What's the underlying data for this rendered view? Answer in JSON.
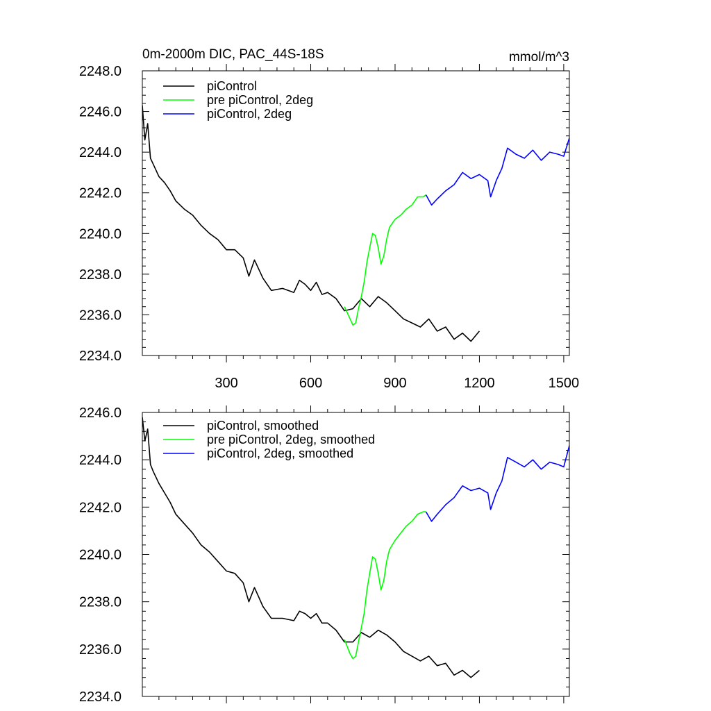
{
  "chart_data": [
    {
      "type": "line",
      "title": "0m-2000m DIC, PAC_44S-18S",
      "units": "mmol/m^3",
      "xlim": [
        1,
        1520
      ],
      "ylim": [
        2234.0,
        2248.0
      ],
      "xticks": [
        300,
        600,
        900,
        1200,
        1500
      ],
      "xtick_labels": [
        "300",
        "600",
        "900",
        "1200",
        "1500"
      ],
      "yticks": [
        2234,
        2236,
        2238,
        2240,
        2242,
        2244,
        2246,
        2248
      ],
      "ytick_labels": [
        "2234.0",
        "2236.0",
        "2238.0",
        "2240.0",
        "2242.0",
        "2244.0",
        "2246.0",
        "2248.0"
      ],
      "legend_position": "top-left",
      "grid": false,
      "series": [
        {
          "name": "piControl",
          "color": "#000000",
          "x": [
            1,
            10,
            20,
            30,
            40,
            60,
            80,
            100,
            120,
            150,
            180,
            210,
            240,
            270,
            300,
            330,
            360,
            380,
            400,
            430,
            460,
            500,
            540,
            560,
            580,
            600,
            620,
            640,
            660,
            690,
            720,
            750,
            780,
            810,
            840,
            870,
            900,
            930,
            960,
            990,
            1020,
            1050,
            1080,
            1110,
            1140,
            1170,
            1200
          ],
          "y": [
            2246.3,
            2244.6,
            2245.4,
            2243.7,
            2243.4,
            2242.8,
            2242.5,
            2242.1,
            2241.6,
            2241.2,
            2240.9,
            2240.4,
            2240.0,
            2239.7,
            2239.2,
            2239.2,
            2238.8,
            2237.9,
            2238.7,
            2237.8,
            2237.2,
            2237.3,
            2237.1,
            2237.7,
            2237.5,
            2237.2,
            2237.6,
            2237.0,
            2237.1,
            2236.8,
            2236.2,
            2236.3,
            2236.8,
            2236.4,
            2236.9,
            2236.6,
            2236.2,
            2235.8,
            2235.6,
            2235.4,
            2235.8,
            2235.2,
            2235.4,
            2234.8,
            2235.1,
            2234.7,
            2235.2
          ]
        },
        {
          "name": "pre piControl, 2deg",
          "color": "#00ff00",
          "x": [
            720,
            740,
            750,
            760,
            770,
            780,
            790,
            800,
            810,
            820,
            830,
            840,
            850,
            860,
            870,
            880,
            900,
            920,
            940,
            960,
            980,
            1000,
            1010
          ],
          "y": [
            2236.4,
            2235.8,
            2235.5,
            2235.6,
            2236.3,
            2236.9,
            2237.6,
            2238.6,
            2239.3,
            2240.0,
            2239.9,
            2239.3,
            2238.5,
            2238.9,
            2239.7,
            2240.3,
            2240.7,
            2240.9,
            2241.2,
            2241.4,
            2241.8,
            2241.8,
            2241.9
          ]
        },
        {
          "name": "piControl, 2deg",
          "color": "#0000ff",
          "x": [
            1010,
            1030,
            1050,
            1080,
            1110,
            1140,
            1170,
            1200,
            1230,
            1240,
            1260,
            1280,
            1300,
            1330,
            1360,
            1390,
            1420,
            1450,
            1480,
            1500,
            1520
          ],
          "y": [
            2241.9,
            2241.4,
            2241.7,
            2242.1,
            2242.4,
            2243.0,
            2242.7,
            2242.9,
            2242.6,
            2241.8,
            2242.6,
            2243.2,
            2244.2,
            2243.9,
            2243.7,
            2244.1,
            2243.6,
            2244.0,
            2243.9,
            2243.8,
            2244.7
          ]
        }
      ]
    },
    {
      "type": "line",
      "xlim": [
        1,
        1520
      ],
      "ylim": [
        2234.0,
        2246.0
      ],
      "xticks": [
        300,
        600,
        900,
        1200,
        1500
      ],
      "yticks": [
        2234,
        2236,
        2238,
        2240,
        2242,
        2244,
        2246
      ],
      "ytick_labels": [
        "2234.0",
        "2236.0",
        "2238.0",
        "2240.0",
        "2242.0",
        "2244.0",
        "2246.0"
      ],
      "legend_position": "top-left",
      "grid": false,
      "series": [
        {
          "name": "piControl, smoothed",
          "color": "#000000",
          "x": [
            1,
            10,
            20,
            30,
            40,
            60,
            80,
            100,
            120,
            150,
            180,
            210,
            240,
            270,
            300,
            330,
            360,
            380,
            400,
            430,
            460,
            500,
            540,
            560,
            580,
            600,
            620,
            640,
            660,
            690,
            720,
            750,
            780,
            810,
            840,
            870,
            900,
            930,
            960,
            990,
            1020,
            1050,
            1080,
            1110,
            1140,
            1170,
            1200
          ],
          "y": [
            2245.8,
            2244.8,
            2245.3,
            2243.8,
            2243.5,
            2243.0,
            2242.6,
            2242.2,
            2241.7,
            2241.3,
            2240.9,
            2240.4,
            2240.1,
            2239.7,
            2239.3,
            2239.2,
            2238.8,
            2238.0,
            2238.6,
            2237.8,
            2237.3,
            2237.3,
            2237.2,
            2237.6,
            2237.5,
            2237.3,
            2237.5,
            2237.1,
            2237.1,
            2236.8,
            2236.3,
            2236.3,
            2236.7,
            2236.5,
            2236.8,
            2236.6,
            2236.3,
            2235.9,
            2235.7,
            2235.5,
            2235.7,
            2235.3,
            2235.4,
            2234.9,
            2235.1,
            2234.8,
            2235.1
          ]
        },
        {
          "name": "pre piControl, 2deg, smoothed",
          "color": "#00ff00",
          "x": [
            720,
            740,
            750,
            760,
            770,
            780,
            790,
            800,
            810,
            820,
            830,
            840,
            850,
            860,
            870,
            880,
            900,
            920,
            940,
            960,
            980,
            1000,
            1010
          ],
          "y": [
            2236.4,
            2235.8,
            2235.6,
            2235.7,
            2236.3,
            2236.9,
            2237.5,
            2238.5,
            2239.2,
            2239.9,
            2239.8,
            2239.2,
            2238.5,
            2238.9,
            2239.7,
            2240.2,
            2240.6,
            2240.9,
            2241.2,
            2241.4,
            2241.7,
            2241.8,
            2241.8
          ]
        },
        {
          "name": "piControl, 2deg, smoothed",
          "color": "#0000ff",
          "x": [
            1010,
            1030,
            1050,
            1080,
            1110,
            1140,
            1170,
            1200,
            1230,
            1240,
            1260,
            1280,
            1300,
            1330,
            1360,
            1390,
            1420,
            1450,
            1480,
            1500,
            1520
          ],
          "y": [
            2241.8,
            2241.4,
            2241.7,
            2242.1,
            2242.4,
            2242.9,
            2242.7,
            2242.8,
            2242.6,
            2241.9,
            2242.6,
            2243.1,
            2244.1,
            2243.9,
            2243.7,
            2244.0,
            2243.6,
            2243.9,
            2243.8,
            2243.7,
            2244.6
          ]
        }
      ]
    }
  ]
}
